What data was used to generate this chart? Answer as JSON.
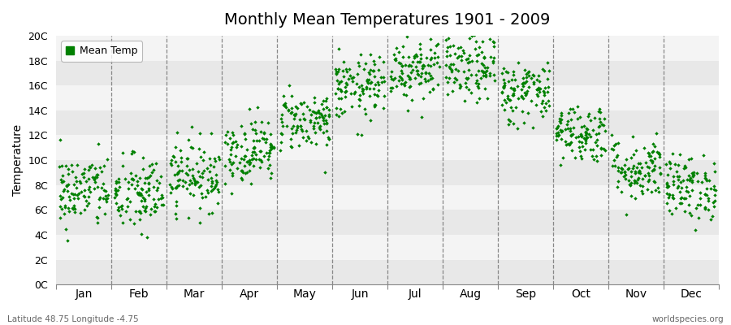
{
  "title": "Monthly Mean Temperatures 1901 - 2009",
  "ylabel": "Temperature",
  "subtitle_left": "Latitude 48.75 Longitude -4.75",
  "subtitle_right": "worldspecies.org",
  "legend_label": "Mean Temp",
  "dot_color": "#008000",
  "background_color": "#ffffff",
  "plot_bg_color": "#ffffff",
  "band_color_dark": "#e8e8e8",
  "band_color_light": "#f4f4f4",
  "ylim": [
    0,
    20
  ],
  "yticks": [
    0,
    2,
    4,
    6,
    8,
    10,
    12,
    14,
    16,
    18,
    20
  ],
  "ytick_labels": [
    "0C",
    "2C",
    "4C",
    "6C",
    "8C",
    "10C",
    "12C",
    "14C",
    "16C",
    "18C",
    "20C"
  ],
  "month_names": [
    "Jan",
    "Feb",
    "Mar",
    "Apr",
    "May",
    "Jun",
    "Jul",
    "Aug",
    "Sep",
    "Oct",
    "Nov",
    "Dec"
  ],
  "month_means": [
    7.5,
    7.2,
    8.8,
    10.8,
    13.2,
    15.8,
    17.5,
    17.4,
    15.5,
    12.2,
    9.3,
    7.8
  ],
  "month_stds": [
    1.5,
    1.6,
    1.4,
    1.3,
    1.2,
    1.3,
    1.4,
    1.4,
    1.3,
    1.2,
    1.3,
    1.3
  ],
  "n_years": 109,
  "seed": 42
}
